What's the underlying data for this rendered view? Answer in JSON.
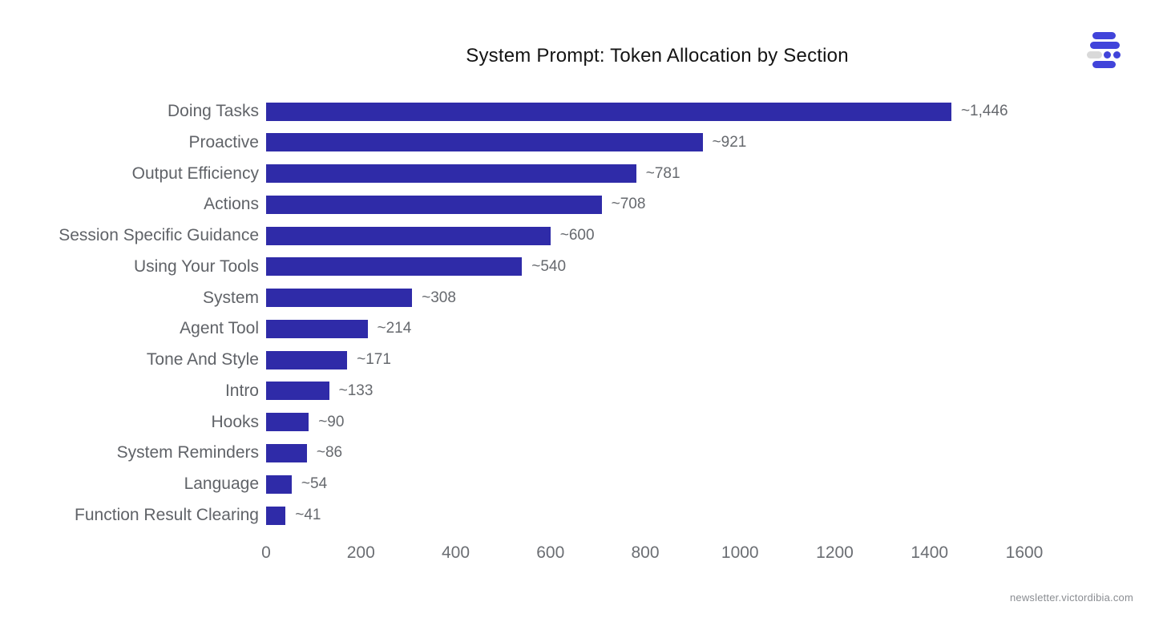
{
  "title": "System Prompt: Token Allocation by Section",
  "footer": "newsletter.victordibia.com",
  "logo": {
    "name": "newsletter-logo",
    "blue": "#4144da",
    "gray": "#d9d9d9"
  },
  "colors": {
    "bar_fill": "#2f2ba8",
    "title_text": "#141414",
    "label_text": "#606368",
    "value_text": "#66696e",
    "tick_text": "#6b6e73",
    "background": "#ffffff"
  },
  "chart_data": {
    "type": "bar",
    "orientation": "horizontal",
    "title": "System Prompt: Token Allocation by Section",
    "xlabel": "",
    "ylabel": "",
    "categories": [
      "Doing Tasks",
      "Proactive",
      "Output Efficiency",
      "Actions",
      "Session Specific Guidance",
      "Using Your Tools",
      "System",
      "Agent Tool",
      "Tone And Style",
      "Intro",
      "Hooks",
      "System Reminders",
      "Language",
      "Function Result Clearing"
    ],
    "values": [
      1446,
      921,
      781,
      708,
      600,
      540,
      308,
      214,
      171,
      133,
      90,
      86,
      54,
      41
    ],
    "value_labels": [
      "~1,446",
      "~921",
      "~781",
      "~708",
      "~600",
      "~540",
      "~308",
      "~214",
      "~171",
      "~133",
      "~90",
      "~86",
      "~54",
      "~41"
    ],
    "xlim": [
      0,
      1600
    ],
    "xticks": [
      0,
      200,
      400,
      600,
      800,
      1000,
      1200,
      1400,
      1600
    ],
    "grid": false,
    "legend": false,
    "bar_color": "#2f2ba8"
  }
}
